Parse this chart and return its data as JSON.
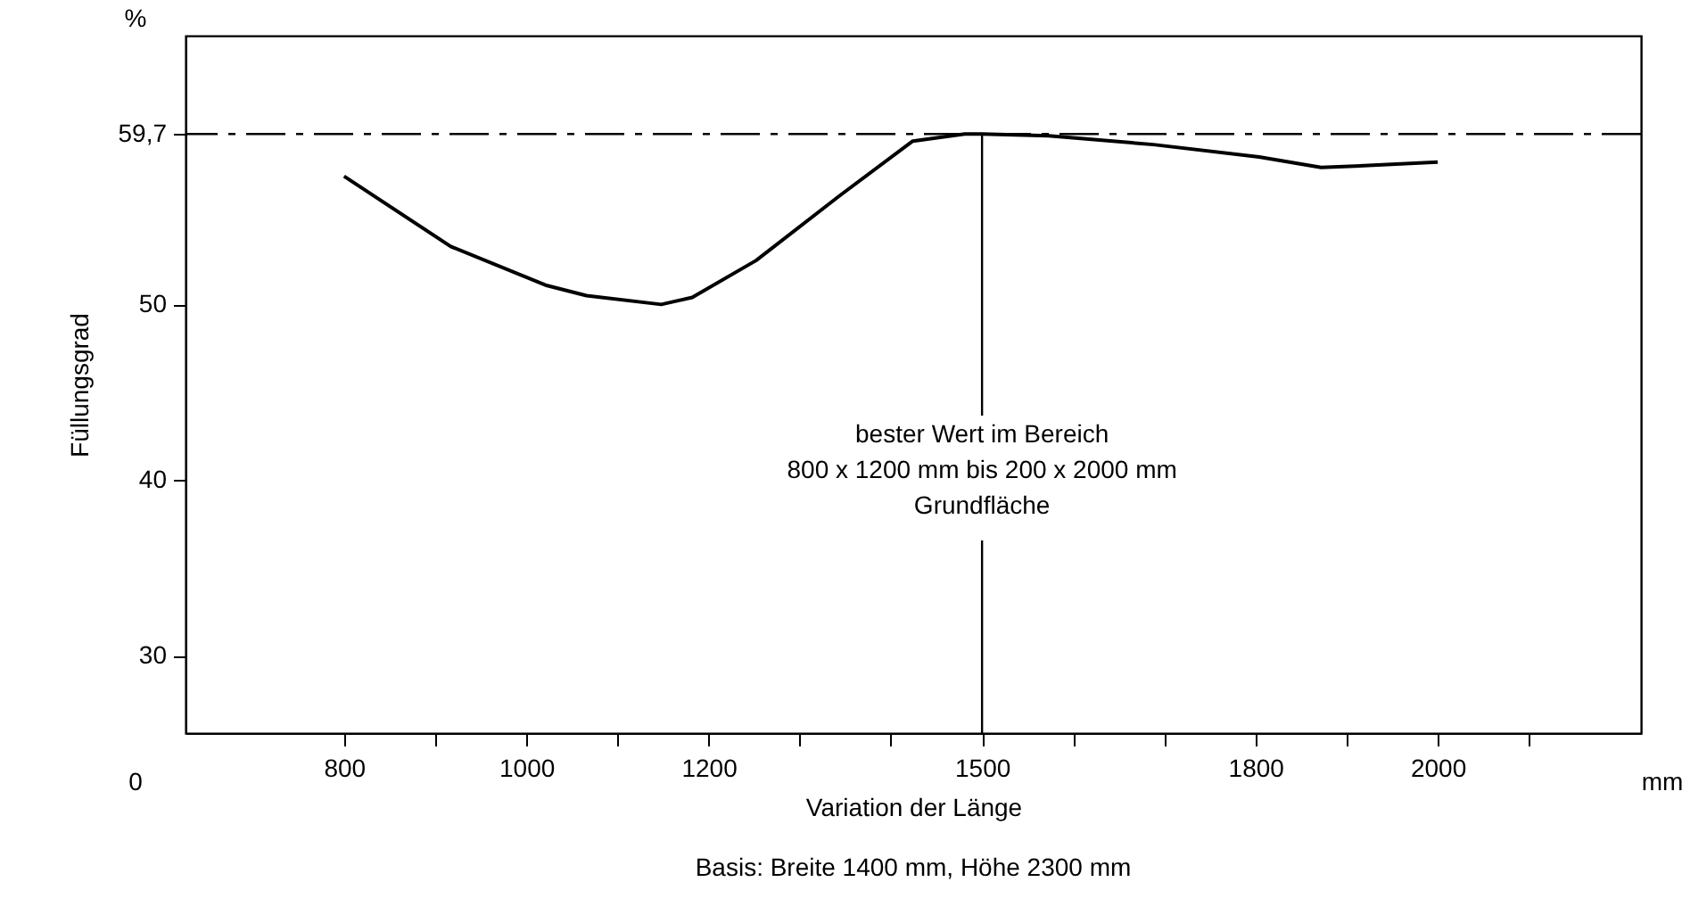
{
  "chart_data": {
    "type": "line",
    "xlabel": "Variation der Länge",
    "ylabel": "Füllungsgrad",
    "x": [
      800,
      917,
      1021,
      1066,
      1148,
      1182,
      1252,
      1344,
      1424,
      1481,
      1500,
      1573,
      1688,
      1804,
      1872,
      1919,
      2000
    ],
    "series": [
      {
        "color": "#000000",
        "values": [
          57.3,
          53.3,
          51.1,
          50.5,
          50.0,
          50.4,
          52.5,
          56.2,
          59.3,
          59.7,
          59.7,
          59.6,
          59.1,
          58.4,
          57.8,
          57.9,
          58.1
        ]
      }
    ],
    "xlim": [
      626,
      2223
    ],
    "xticks": [
      800,
      {
        "value": 900,
        "label": null
      },
      1000,
      {
        "value": 1100,
        "label": null
      },
      1200,
      {
        "value": 1300,
        "label": null
      },
      {
        "value": 1400,
        "label": null
      },
      1500,
      {
        "value": 1600,
        "label": null
      },
      {
        "value": 1700,
        "label": null
      },
      1800,
      {
        "value": 1900,
        "label": null
      },
      2000,
      {
        "value": 2100,
        "label": null
      }
    ],
    "ylim": [
      25.6,
      65.3
    ],
    "yticks": [
      30,
      40,
      50,
      {
        "value": 59.7,
        "label": "59,7"
      }
    ],
    "ref_lines": [
      {
        "axis": "y",
        "value": 59.7,
        "line_style": "dashed",
        "color": "#000000"
      },
      {
        "axis": "x",
        "value": 1500,
        "line_style": "solid",
        "color": "#000000"
      }
    ],
    "annotations": [
      "%",
      "mm",
      "bester Wert im Bereich\n800 x 1200 mm bis 200 x 2000 mm\nGrundfläche",
      "Basis: Breite 1400 mm, Höhe 2300 mm",
      "0"
    ],
    "grid": false,
    "marker": "none",
    "line_style": "solid"
  }
}
